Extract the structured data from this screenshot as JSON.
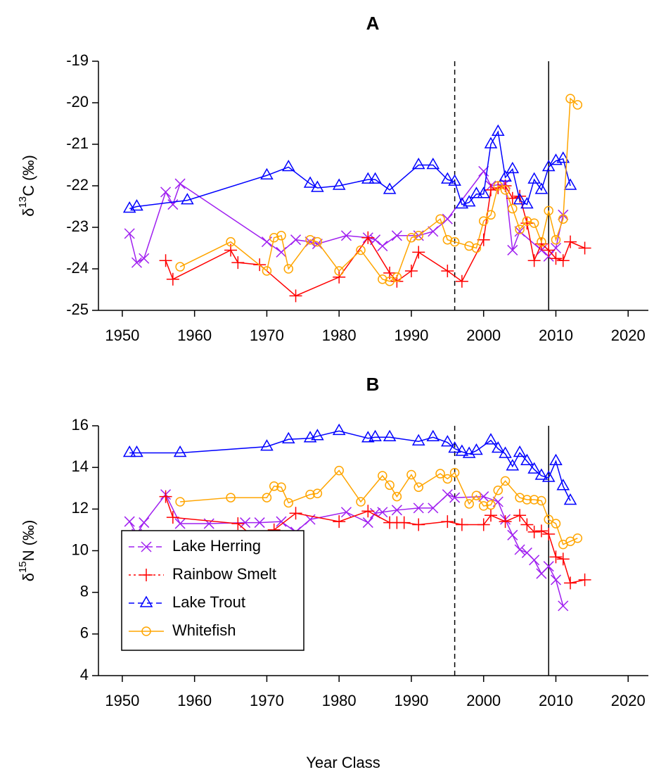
{
  "chart_data": [
    {
      "type": "line",
      "title": "A",
      "ylabel": {
        "pre": "δ",
        "sup": "13",
        "post": "C (‰)"
      },
      "xlim": [
        1946.7,
        2022.8
      ],
      "xticks": [
        1950,
        1960,
        1970,
        1980,
        1990,
        2000,
        2010,
        2020
      ],
      "ylim": [
        -25,
        -19
      ],
      "yticks": [
        -25,
        -24,
        -23,
        -22,
        -21,
        -20,
        -19
      ],
      "vlines": [
        {
          "x": 1996,
          "style": "dashed"
        },
        {
          "x": 2009,
          "style": "solid"
        }
      ],
      "series": [
        {
          "name": "Lake Herring",
          "color": "#a020f0",
          "marker": "x",
          "x": [
            1951,
            1952,
            1953,
            1956,
            1957,
            1958,
            1970,
            1972,
            1974,
            1976,
            1977,
            1981,
            1984,
            1985,
            1986,
            1988,
            1991,
            1993,
            1995,
            2000,
            2001,
            2003,
            2004,
            2005,
            2008,
            2009,
            2010,
            2011
          ],
          "values": [
            -23.15,
            -23.85,
            -23.75,
            -22.15,
            -22.45,
            -21.95,
            -23.35,
            -23.6,
            -23.3,
            -23.35,
            -23.4,
            -23.2,
            -23.25,
            -23.3,
            -23.45,
            -23.2,
            -23.2,
            -23.1,
            -22.8,
            -21.65,
            -22.0,
            -21.95,
            -23.55,
            -23.1,
            -23.55,
            -23.7,
            -23.5,
            -22.7
          ]
        },
        {
          "name": "Rainbow Smelt",
          "color": "#ff0000",
          "marker": "plus",
          "x": [
            1956,
            1957,
            1965,
            1966,
            1969,
            1974,
            1980,
            1984,
            1987,
            1988,
            1990,
            1991,
            1995,
            1997,
            2000,
            2001,
            2002,
            2003,
            2004,
            2005,
            2006,
            2007,
            2008,
            2009,
            2010,
            2011,
            2012,
            2014
          ],
          "values": [
            -23.8,
            -24.25,
            -23.55,
            -23.85,
            -23.9,
            -24.65,
            -24.2,
            -23.25,
            -24.1,
            -24.3,
            -24.05,
            -23.6,
            -24.05,
            -24.3,
            -23.3,
            -22.1,
            -22.05,
            -22.0,
            -22.3,
            -22.25,
            -22.9,
            -23.8,
            -23.4,
            -23.55,
            -23.75,
            -23.8,
            -23.35,
            -23.5
          ]
        },
        {
          "name": "Lake Trout",
          "color": "#0000ff",
          "marker": "triangle",
          "x": [
            1951,
            1952,
            1959,
            1970,
            1973,
            1976,
            1977,
            1980,
            1984,
            1985,
            1987,
            1991,
            1993,
            1995,
            1996,
            1997,
            1998,
            1999,
            2000,
            2001,
            2002,
            2003,
            2004,
            2005,
            2006,
            2007,
            2008,
            2009,
            2010,
            2011,
            2012
          ],
          "values": [
            -22.55,
            -22.5,
            -22.35,
            -21.75,
            -21.55,
            -21.95,
            -22.05,
            -22.0,
            -21.85,
            -21.85,
            -22.1,
            -21.5,
            -21.5,
            -21.85,
            -21.9,
            -22.45,
            -22.4,
            -22.2,
            -22.2,
            -21.0,
            -20.7,
            -21.8,
            -21.6,
            -22.35,
            -22.45,
            -21.85,
            -22.1,
            -21.55,
            -21.4,
            -21.35,
            -22.0
          ]
        },
        {
          "name": "Whitefish",
          "color": "#ffa500",
          "marker": "circle",
          "x": [
            1958,
            1965,
            1970,
            1971,
            1972,
            1973,
            1976,
            1977,
            1980,
            1983,
            1986,
            1987,
            1988,
            1990,
            1991,
            1994,
            1995,
            1996,
            1998,
            1999,
            2000,
            2001,
            2002,
            2003,
            2004,
            2005,
            2006,
            2007,
            2008,
            2009,
            2010,
            2011,
            2012,
            2013
          ],
          "values": [
            -23.95,
            -23.35,
            -24.05,
            -23.25,
            -23.2,
            -24.0,
            -23.3,
            -23.35,
            -24.05,
            -23.55,
            -24.25,
            -24.3,
            -24.2,
            -23.25,
            -23.2,
            -22.8,
            -23.3,
            -23.35,
            -23.45,
            -23.5,
            -22.85,
            -22.7,
            -22.0,
            -22.1,
            -22.55,
            -23.05,
            -22.85,
            -22.9,
            -23.35,
            -22.6,
            -23.3,
            -22.8,
            -19.9,
            -20.05
          ]
        }
      ]
    },
    {
      "type": "line",
      "title": "B",
      "ylabel": {
        "pre": "δ",
        "sup": "15",
        "post": "N (‰)"
      },
      "xlabel": "Year Class",
      "xlim": [
        1946.7,
        2022.8
      ],
      "xticks": [
        1950,
        1960,
        1970,
        1980,
        1990,
        2000,
        2010,
        2020
      ],
      "ylim": [
        4,
        16
      ],
      "yticks": [
        4,
        6,
        8,
        10,
        12,
        14,
        16
      ],
      "vlines": [
        {
          "x": 1996,
          "style": "dashed"
        },
        {
          "x": 2009,
          "style": "solid"
        }
      ],
      "legend": "bottom-left",
      "series": [
        {
          "name": "Lake Herring",
          "color": "#a020f0",
          "marker": "x",
          "dash": "8,5",
          "x": [
            1951,
            1952,
            1953,
            1956,
            1958,
            1962,
            1967,
            1969,
            1972,
            1974,
            1976,
            1981,
            1984,
            1985,
            1986,
            1988,
            1991,
            1993,
            1995,
            1996,
            2000,
            2002,
            2003,
            2004,
            2005,
            2006,
            2007,
            2008,
            2009,
            2010,
            2011
          ],
          "values": [
            11.4,
            10.8,
            11.35,
            12.7,
            11.3,
            11.3,
            11.35,
            11.35,
            11.4,
            10.9,
            11.5,
            11.85,
            11.35,
            11.8,
            11.85,
            11.95,
            12.05,
            12.05,
            12.7,
            12.55,
            12.6,
            12.35,
            11.5,
            10.75,
            10.05,
            9.9,
            9.55,
            8.9,
            9.25,
            8.6,
            7.35
          ]
        },
        {
          "name": "Rainbow Smelt",
          "color": "#ff0000",
          "marker": "plus",
          "dash": "3,4",
          "x": [
            1956,
            1957,
            1966,
            1969,
            1971,
            1974,
            1980,
            1984,
            1987,
            1988,
            1989,
            1991,
            1995,
            1997,
            2000,
            2001,
            2003,
            2005,
            2006,
            2007,
            2008,
            2009,
            2010,
            2011,
            2012,
            2014
          ],
          "values": [
            12.6,
            11.6,
            11.3,
            10.4,
            11.0,
            11.8,
            11.4,
            11.9,
            11.35,
            11.35,
            11.35,
            11.25,
            11.4,
            11.25,
            11.25,
            11.7,
            11.4,
            11.7,
            11.25,
            10.9,
            10.95,
            10.8,
            9.7,
            9.6,
            8.45,
            8.6
          ]
        },
        {
          "name": "Lake Trout",
          "color": "#0000ff",
          "marker": "triangle",
          "dash": "8,5",
          "x": [
            1951,
            1952,
            1958,
            1970,
            1973,
            1976,
            1977,
            1980,
            1984,
            1985,
            1987,
            1991,
            1993,
            1995,
            1996,
            1997,
            1998,
            1999,
            2001,
            2002,
            2003,
            2004,
            2005,
            2006,
            2007,
            2008,
            2009,
            2010,
            2011,
            2012
          ],
          "values": [
            14.7,
            14.7,
            14.7,
            15.0,
            15.35,
            15.4,
            15.5,
            15.75,
            15.4,
            15.45,
            15.45,
            15.25,
            15.45,
            15.2,
            14.9,
            14.75,
            14.65,
            14.8,
            15.3,
            14.9,
            14.65,
            14.05,
            14.7,
            14.3,
            13.9,
            13.6,
            13.5,
            14.3,
            13.1,
            12.4
          ]
        },
        {
          "name": "Whitefish",
          "color": "#ffa500",
          "marker": "circle",
          "x": [
            1958,
            1965,
            1970,
            1971,
            1972,
            1973,
            1976,
            1977,
            1980,
            1983,
            1986,
            1987,
            1988,
            1990,
            1991,
            1994,
            1995,
            1996,
            1998,
            1999,
            2000,
            2001,
            2002,
            2003,
            2005,
            2006,
            2007,
            2008,
            2009,
            2010,
            2011,
            2012,
            2013
          ],
          "values": [
            12.35,
            12.55,
            12.55,
            13.1,
            13.05,
            12.3,
            12.7,
            12.75,
            13.85,
            12.35,
            13.6,
            13.15,
            12.6,
            13.65,
            13.05,
            13.7,
            13.45,
            13.75,
            12.25,
            12.65,
            12.15,
            12.2,
            12.9,
            13.35,
            12.55,
            12.45,
            12.45,
            12.4,
            11.5,
            11.3,
            10.3,
            10.45,
            10.6
          ]
        }
      ]
    }
  ]
}
